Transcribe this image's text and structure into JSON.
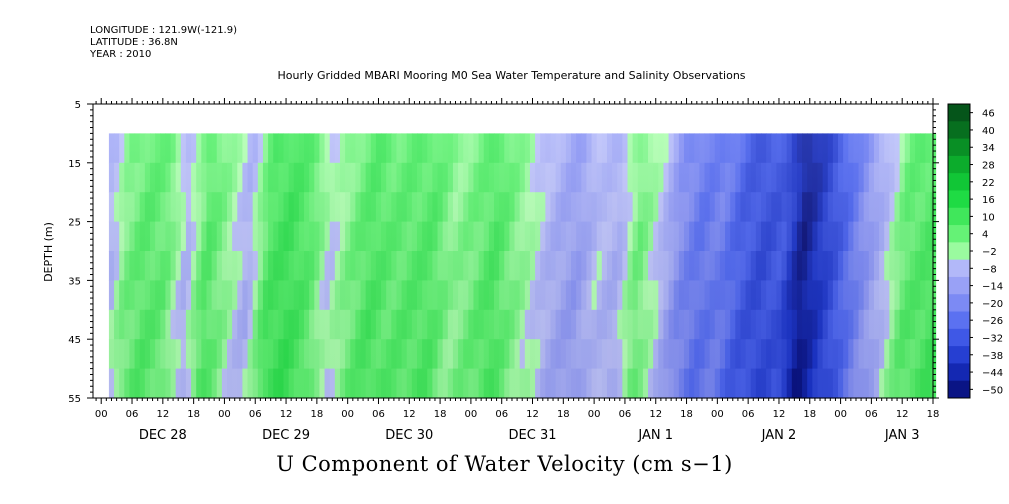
{
  "header": {
    "longitude": "LONGITUDE : 121.9W(-121.9)",
    "latitude": "LATITUDE : 36.8N",
    "year": "YEAR : 2010"
  },
  "chart_data": {
    "type": "heatmap",
    "title": "Hourly Gridded MBARI Mooring M0 Sea Water Temperature and Salinity Observations",
    "xlabel": "U Component of Water Velocity (cm s−1)",
    "ylabel": "DEPTH (m)",
    "y_ticks": [
      "5",
      "15",
      "25",
      "35",
      "45",
      "55"
    ],
    "y_tick_values": [
      5,
      15,
      25,
      35,
      45,
      55
    ],
    "ylim": [
      55,
      5
    ],
    "data_depth_range": [
      10,
      55
    ],
    "x_hour_labels": [
      "00",
      "06",
      "12",
      "18",
      "00",
      "06",
      "12",
      "18",
      "00",
      "06",
      "12",
      "18",
      "00",
      "06",
      "12",
      "18",
      "00",
      "06",
      "12",
      "18",
      "00",
      "06",
      "12",
      "18",
      "00",
      "06",
      "12",
      "18"
    ],
    "x_day_labels": [
      "DEC 28",
      "DEC 29",
      "DEC 30",
      "DEC 31",
      "JAN  1",
      "JAN  2",
      "JAN  3"
    ],
    "x_range_hours": [
      -1.6,
      162
    ],
    "data_hour_range": [
      1.5,
      162
    ],
    "colorbar_labels": [
      "46",
      "40",
      "34",
      "28",
      "22",
      "16",
      "10",
      "4",
      "−2",
      "−8",
      "−14",
      "−20",
      "−26",
      "−32",
      "−38",
      "−44",
      "−50"
    ],
    "colorbar_levels": [
      46,
      40,
      34,
      28,
      22,
      16,
      10,
      4,
      -2,
      -8,
      -14,
      -20,
      -26,
      -32,
      -38,
      -44,
      -50
    ],
    "colorbar_range": [
      -50,
      49
    ],
    "u_profile_hours": [
      1.5,
      4,
      8,
      12,
      16,
      20,
      24,
      28,
      32,
      36,
      40,
      44,
      48,
      52,
      56,
      60,
      64,
      68,
      72,
      76,
      80,
      84,
      88,
      92,
      96,
      100,
      104,
      108,
      112,
      116,
      120,
      124,
      128,
      132,
      136,
      140,
      144,
      148,
      152,
      156,
      160,
      162
    ],
    "u_profile_values": [
      -5,
      4,
      9,
      7,
      -6,
      10,
      2,
      -7,
      11,
      14,
      9,
      -3,
      5,
      11,
      8,
      9,
      10,
      2,
      6,
      11,
      4,
      -2,
      -8,
      -12,
      -4,
      -7,
      6,
      -3,
      -16,
      -22,
      -20,
      -28,
      -32,
      -30,
      -46,
      -36,
      -26,
      -15,
      -5,
      8,
      10,
      12
    ]
  },
  "colors": {
    "frame": "#000000",
    "background": "#ffffff"
  }
}
